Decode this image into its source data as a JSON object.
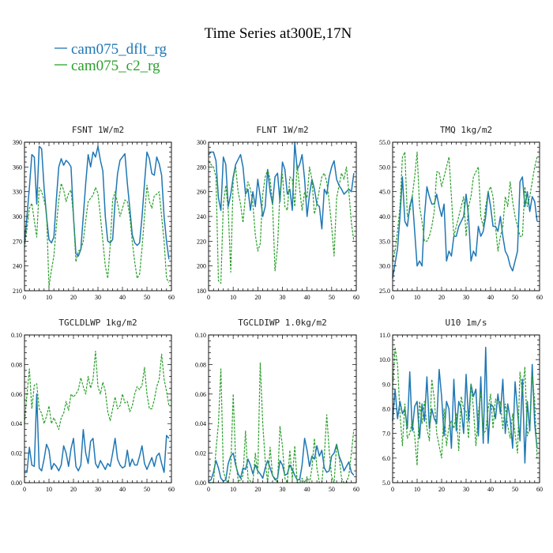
{
  "figure": {
    "title": "Time Series at300E,17N",
    "legend": [
      {
        "label": "cam075_dflt_rg",
        "color": "#1f77b4",
        "dash": "solid"
      },
      {
        "label": "cam075_c2_rg",
        "color": "#2ca02c",
        "dash": "dashed"
      }
    ]
  },
  "chart_data": [
    {
      "type": "line",
      "title": "FSNT",
      "units": "1W/m2",
      "xlim": [
        0,
        60
      ],
      "ylim": [
        210,
        390
      ],
      "xticks": [
        0,
        10,
        20,
        30,
        40,
        50,
        60
      ],
      "yticks": [
        "210",
        "240",
        "270",
        "300",
        "330",
        "360",
        "390"
      ],
      "series": [
        {
          "name": "cam075_dflt_rg",
          "x0": 0,
          "values": [
            268,
            300,
            335,
            375,
            372,
            315,
            385,
            382,
            335,
            300,
            272,
            268,
            275,
            320,
            360,
            370,
            362,
            368,
            365,
            360,
            300,
            255,
            252,
            260,
            300,
            340,
            375,
            360,
            378,
            372,
            385,
            368,
            355,
            300,
            270,
            268,
            272,
            318,
            352,
            368,
            372,
            376,
            340,
            310,
            278,
            268,
            265,
            268,
            300,
            340,
            378,
            370,
            352,
            350,
            372,
            364,
            350,
            300,
            270,
            248
          ]
        },
        {
          "name": "cam075_c2_rg",
          "x0": 0,
          "values": [
            262,
            285,
            310,
            316,
            295,
            275,
            335,
            330,
            320,
            305,
            215,
            235,
            252,
            288,
            320,
            340,
            332,
            318,
            328,
            332,
            300,
            245,
            258,
            260,
            270,
            295,
            318,
            322,
            326,
            335,
            328,
            300,
            270,
            240,
            225,
            265,
            320,
            330,
            316,
            300,
            310,
            320,
            318,
            300,
            270,
            245,
            225,
            230,
            262,
            300,
            338,
            318,
            310,
            325,
            327,
            330,
            300,
            270,
            225,
            220
          ]
        }
      ]
    },
    {
      "type": "line",
      "title": "FLNT",
      "units": "1W/m2",
      "xlim": [
        0,
        60
      ],
      "ylim": [
        180,
        300
      ],
      "xticks": [
        0,
        10,
        20,
        30,
        40,
        50,
        60
      ],
      "yticks": [
        "180",
        "200",
        "220",
        "240",
        "260",
        "280",
        "300"
      ],
      "series": [
        {
          "name": "cam075_dflt_rg",
          "x0": 0,
          "values": [
            290,
            292,
            292,
            285,
            255,
            245,
            288,
            282,
            248,
            258,
            272,
            282,
            286,
            290,
            280,
            258,
            262,
            245,
            260,
            248,
            270,
            256,
            240,
            248,
            278,
            260,
            250,
            272,
            275,
            252,
            284,
            278,
            258,
            262,
            245,
            300,
            278,
            282,
            290,
            270,
            240,
            258,
            270,
            262,
            250,
            248,
            230,
            262,
            258,
            272,
            280,
            285,
            270,
            265,
            262,
            258,
            260,
            262,
            260,
            275
          ]
        },
        {
          "name": "cam075_c2_rg",
          "x0": 0,
          "values": [
            285,
            282,
            280,
            272,
            188,
            186,
            250,
            265,
            245,
            195,
            270,
            280,
            260,
            250,
            235,
            258,
            268,
            262,
            250,
            225,
            212,
            218,
            258,
            272,
            278,
            270,
            250,
            196,
            215,
            260,
            274,
            248,
            245,
            272,
            270,
            248,
            282,
            262,
            245,
            260,
            255,
            280,
            270,
            242,
            250,
            262,
            272,
            275,
            268,
            252,
            232,
            208,
            255,
            265,
            275,
            270,
            280,
            260,
            235,
            220
          ]
        }
      ]
    },
    {
      "type": "line",
      "title": "TMQ",
      "units": "1kg/m2",
      "xlim": [
        0,
        60
      ],
      "ylim": [
        25,
        55
      ],
      "xticks": [
        0,
        10,
        20,
        30,
        40,
        50,
        60
      ],
      "yticks": [
        "25.0",
        "30.0",
        "35.0",
        "40.0",
        "45.0",
        "50.0",
        "55.0"
      ],
      "series": [
        {
          "name": "cam075_dflt_rg",
          "x0": 0,
          "values": [
            27.5,
            30.5,
            33.5,
            40,
            48,
            39,
            38,
            42,
            44,
            37,
            30,
            31,
            30,
            40,
            46,
            44,
            42.5,
            42.5,
            44.5,
            42,
            40,
            42.5,
            31,
            33,
            32,
            36,
            36,
            38,
            39,
            40,
            44.5,
            40,
            31,
            33,
            32,
            38,
            36,
            37,
            40,
            45,
            42,
            38,
            38,
            37,
            40,
            36,
            33,
            32,
            30,
            29,
            31,
            33,
            47,
            48,
            42,
            45,
            41,
            44,
            43,
            39
          ]
        },
        {
          "name": "cam075_c2_rg",
          "x0": 0,
          "values": [
            31,
            33,
            37,
            42,
            52,
            53,
            40,
            41,
            44,
            48,
            53,
            42,
            39,
            35,
            35,
            36,
            38,
            41,
            49,
            49,
            46,
            48,
            50,
            52,
            44,
            36,
            38,
            40,
            42,
            44,
            36,
            42,
            44,
            48,
            49,
            50,
            40,
            38,
            42,
            45,
            46,
            44,
            38,
            33,
            36,
            38,
            44,
            42,
            47,
            43,
            40,
            38,
            36,
            36,
            46,
            42,
            44,
            47,
            50,
            52
          ]
        }
      ]
    },
    {
      "type": "line",
      "title": "TGCLDLWP",
      "units": "1kg/m2",
      "xlim": [
        0,
        60
      ],
      "ylim": [
        0,
        0.1
      ],
      "xticks": [
        0,
        10,
        20,
        30,
        40,
        50,
        60
      ],
      "yticks": [
        "0.00",
        "0.02",
        "0.04",
        "0.06",
        "0.08",
        "0.10"
      ],
      "series": [
        {
          "name": "cam075_dflt_rg",
          "x0": 0,
          "values": [
            0.007,
            0.007,
            0.024,
            0.012,
            0.011,
            0.06,
            0.01,
            0.008,
            0.016,
            0.026,
            0.022,
            0.009,
            0.013,
            0.011,
            0.008,
            0.012,
            0.025,
            0.02,
            0.011,
            0.023,
            0.03,
            0.011,
            0.008,
            0.012,
            0.036,
            0.02,
            0.013,
            0.028,
            0.03,
            0.013,
            0.01,
            0.015,
            0.012,
            0.009,
            0.013,
            0.011,
            0.02,
            0.03,
            0.016,
            0.012,
            0.01,
            0.011,
            0.022,
            0.011,
            0.016,
            0.012,
            0.012,
            0.018,
            0.025,
            0.013,
            0.009,
            0.013,
            0.017,
            0.011,
            0.018,
            0.02,
            0.013,
            0.007,
            0.032,
            0.03
          ]
        },
        {
          "name": "cam075_c2_rg",
          "x0": 0,
          "values": [
            0.04,
            0.06,
            0.077,
            0.05,
            0.066,
            0.067,
            0.05,
            0.047,
            0.04,
            0.045,
            0.052,
            0.04,
            0.044,
            0.04,
            0.036,
            0.044,
            0.047,
            0.055,
            0.049,
            0.06,
            0.058,
            0.06,
            0.063,
            0.071,
            0.065,
            0.06,
            0.072,
            0.064,
            0.07,
            0.089,
            0.065,
            0.06,
            0.068,
            0.062,
            0.048,
            0.042,
            0.05,
            0.058,
            0.05,
            0.052,
            0.06,
            0.054,
            0.055,
            0.048,
            0.052,
            0.06,
            0.065,
            0.063,
            0.066,
            0.078,
            0.06,
            0.05,
            0.05,
            0.056,
            0.065,
            0.07,
            0.087,
            0.07,
            0.062,
            0.052
          ]
        }
      ]
    },
    {
      "type": "line",
      "title": "TGCLDIWP",
      "units": "1.0kg/m2",
      "xlim": [
        0,
        60
      ],
      "ylim": [
        0,
        0.1
      ],
      "xticks": [
        0,
        10,
        20,
        30,
        40,
        50,
        60
      ],
      "yticks": [
        "0.00",
        "0.02",
        "0.04",
        "0.06",
        "0.08",
        "0.10"
      ],
      "series": [
        {
          "name": "cam075_dflt_rg",
          "x0": 0,
          "values": [
            0.001,
            0.002,
            0.007,
            0.015,
            0.01,
            0.003,
            0.001,
            0.002,
            0.013,
            0.018,
            0.02,
            0.012,
            0.006,
            0.003,
            0.01,
            0.009,
            0.016,
            0.012,
            0.006,
            0.012,
            0.008,
            0.006,
            0.003,
            0.01,
            0.015,
            0.01,
            0.005,
            0.002,
            0.003,
            0.015,
            0.012,
            0.005,
            0.006,
            0.012,
            0.009,
            0.005,
            0.002,
            0.002,
            0.012,
            0.03,
            0.022,
            0.011,
            0.018,
            0.016,
            0.025,
            0.018,
            0.022,
            0.01,
            0.007,
            0.008,
            0.018,
            0.02,
            0.026,
            0.018,
            0.014,
            0.008,
            0.011,
            0.014,
            0.007,
            0.005
          ]
        },
        {
          "name": "cam075_c2_rg",
          "x0": 0,
          "values": [
            0.0,
            0.0,
            0.0,
            0.022,
            0.04,
            0.077,
            0.008,
            0.002,
            0.0,
            0.01,
            0.06,
            0.015,
            0.002,
            0.001,
            0.005,
            0.035,
            0.003,
            0.001,
            0.0,
            0.02,
            0.006,
            0.081,
            0.04,
            0.015,
            0.0,
            0.024,
            0.005,
            0.003,
            0.0,
            0.038,
            0.025,
            0.003,
            0.0,
            0.022,
            0.002,
            0.025,
            0.0,
            0.0,
            0.003,
            0.0,
            0.004,
            0.0,
            0.01,
            0.03,
            0.01,
            0.0,
            0.0,
            0.018,
            0.046,
            0.022,
            0.004,
            0.0,
            0.026,
            0.018,
            0.003,
            0.0,
            0.0,
            0.005,
            0.02,
            0.036
          ]
        }
      ]
    },
    {
      "type": "line",
      "title": "U10",
      "units": "1m/s",
      "xlim": [
        0,
        60
      ],
      "ylim": [
        5,
        11
      ],
      "xticks": [
        0,
        10,
        20,
        30,
        40,
        50,
        60
      ],
      "yticks": [
        "5.0",
        "6.0",
        "7.0",
        "8.0",
        "9.0",
        "10.0",
        "11.0"
      ],
      "series": [
        {
          "name": "cam075_dflt_rg",
          "x0": 0,
          "values": [
            7.5,
            8.8,
            7.6,
            8.3,
            7.8,
            8.0,
            7.2,
            9.5,
            7.1,
            8.1,
            8.3,
            6.8,
            8.2,
            7.5,
            9.3,
            7.2,
            8.0,
            7.6,
            7.4,
            9.6,
            8.5,
            6.9,
            8.3,
            8.0,
            6.4,
            9.2,
            7.1,
            8.3,
            8.0,
            7.0,
            9.4,
            7.5,
            9.0,
            8.5,
            8.8,
            6.9,
            9.3,
            6.6,
            10.5,
            6.6,
            8.2,
            8.1,
            7.6,
            8.6,
            7.8,
            9.2,
            7.0,
            8.2,
            7.6,
            6.4,
            9.1,
            7.9,
            6.7,
            9.2,
            5.8,
            8.3,
            7.1,
            9.8,
            7.4,
            6.4
          ]
        },
        {
          "name": "cam075_c2_rg",
          "x0": 0,
          "values": [
            8.8,
            10.5,
            9.8,
            7.8,
            6.5,
            8.2,
            6.8,
            7.0,
            7.5,
            6.9,
            5.7,
            8.3,
            7.4,
            8.3,
            7.2,
            6.7,
            9.2,
            8.4,
            7.0,
            6.5,
            6.0,
            8.0,
            6.5,
            7.3,
            7.5,
            7.2,
            7.8,
            6.3,
            8.5,
            8.0,
            7.9,
            6.8,
            9.0,
            8.0,
            6.5,
            7.8,
            8.7,
            7.0,
            7.1,
            8.0,
            8.6,
            7.2,
            8.4,
            8.2,
            8.3,
            7.2,
            8.2,
            7.3,
            6.8,
            7.8,
            7.0,
            6.2,
            9.5,
            8.6,
            9.7,
            6.9,
            7.2,
            9.4,
            8.3,
            6.0
          ]
        }
      ]
    }
  ]
}
